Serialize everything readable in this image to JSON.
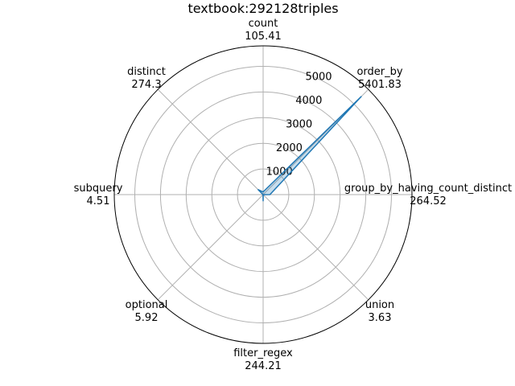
{
  "chart_data": {
    "type": "radar",
    "title": "textbook:292128triples",
    "categories": [
      "count",
      "order_by",
      "group_by_having_count_distinct",
      "union",
      "filter_regex",
      "optional",
      "subquery",
      "distinct"
    ],
    "value_labels": [
      "105.41",
      "5401.83",
      "264.52",
      "3.63",
      "244.21",
      "5.92",
      "4.51",
      "274.3"
    ],
    "values": [
      105.41,
      5401.83,
      264.52,
      3.63,
      244.21,
      5.92,
      4.51,
      274.3
    ],
    "radial_ticks": [
      1000,
      2000,
      3000,
      4000,
      5000
    ],
    "radial_tick_labels": [
      "1000",
      "2000",
      "3000",
      "4000",
      "5000"
    ],
    "rlim": [
      0,
      5800
    ],
    "grid": true,
    "color": "#1f77b4"
  }
}
